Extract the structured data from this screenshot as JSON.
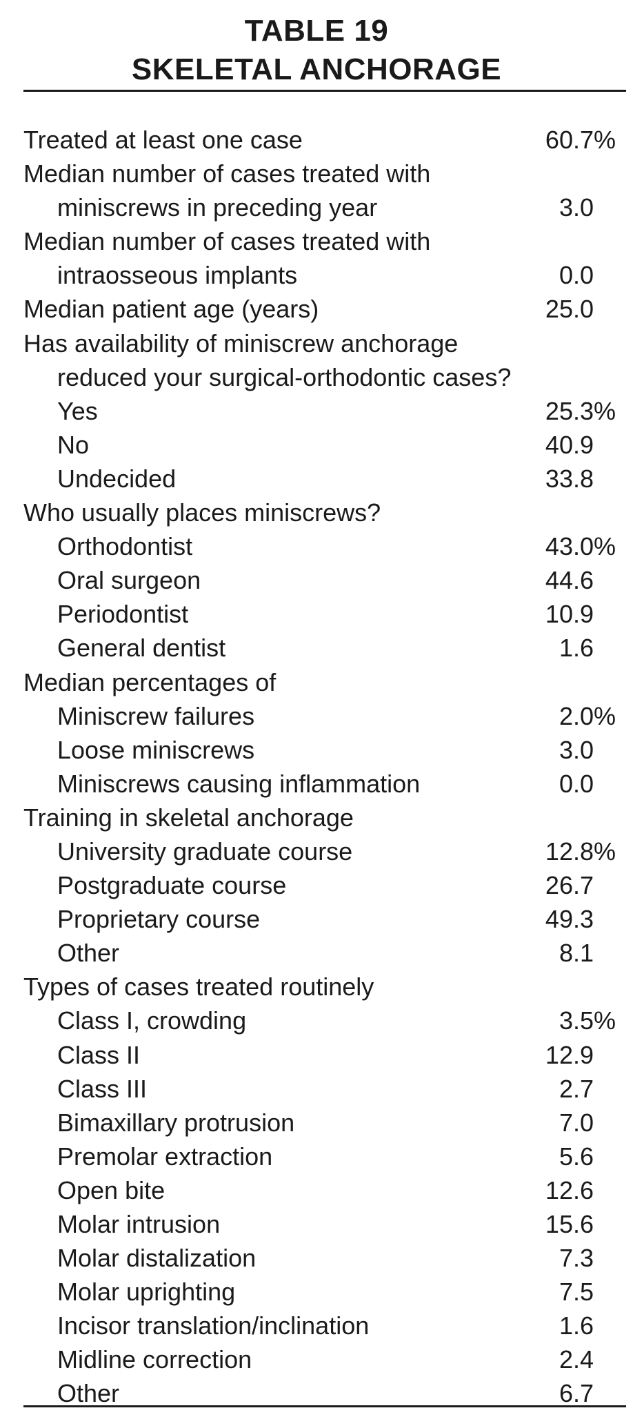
{
  "title": {
    "line1": "TABLE 19",
    "line2": "SKELETAL ANCHORAGE"
  },
  "rows": [
    {
      "label": "Treated at least one case",
      "value": "60.7%",
      "indent": false
    },
    {
      "label": "Median number of cases treated with",
      "value": "",
      "indent": false
    },
    {
      "label": "miniscrews in preceding year",
      "value": "3.0",
      "indent": true
    },
    {
      "label": "Median number of cases treated with",
      "value": "",
      "indent": false
    },
    {
      "label": "intraosseous implants",
      "value": "0.0",
      "indent": true
    },
    {
      "label": "Median patient age (years)",
      "value": "25.0",
      "indent": false
    },
    {
      "label": "Has availability of miniscrew anchorage",
      "value": "",
      "indent": false
    },
    {
      "label": "reduced your surgical-orthodontic cases?",
      "value": "",
      "indent": true
    },
    {
      "label": "Yes",
      "value": "25.3%",
      "indent": true
    },
    {
      "label": "No",
      "value": "40.9",
      "indent": true
    },
    {
      "label": "Undecided",
      "value": "33.8",
      "indent": true
    },
    {
      "label": "Who usually places miniscrews?",
      "value": "",
      "indent": false
    },
    {
      "label": "Orthodontist",
      "value": "43.0%",
      "indent": true
    },
    {
      "label": "Oral surgeon",
      "value": "44.6",
      "indent": true
    },
    {
      "label": "Periodontist",
      "value": "10.9",
      "indent": true
    },
    {
      "label": "General dentist",
      "value": "1.6",
      "indent": true
    },
    {
      "label": "Median percentages of",
      "value": "",
      "indent": false
    },
    {
      "label": "Miniscrew failures",
      "value": "2.0%",
      "indent": true
    },
    {
      "label": "Loose miniscrews",
      "value": "3.0",
      "indent": true
    },
    {
      "label": "Miniscrews causing inflammation",
      "value": "0.0",
      "indent": true
    },
    {
      "label": "Training in skeletal anchorage",
      "value": "",
      "indent": false
    },
    {
      "label": "University graduate course",
      "value": "12.8%",
      "indent": true
    },
    {
      "label": "Postgraduate course",
      "value": "26.7",
      "indent": true
    },
    {
      "label": "Proprietary course",
      "value": "49.3",
      "indent": true
    },
    {
      "label": "Other",
      "value": "8.1",
      "indent": true
    },
    {
      "label": "Types of cases treated routinely",
      "value": "",
      "indent": false
    },
    {
      "label": "Class I, crowding",
      "value": "3.5%",
      "indent": true
    },
    {
      "label": "Class II",
      "value": "12.9",
      "indent": true
    },
    {
      "label": "Class III",
      "value": "2.7",
      "indent": true
    },
    {
      "label": "Bimaxillary protrusion",
      "value": "7.0",
      "indent": true
    },
    {
      "label": "Premolar extraction",
      "value": "5.6",
      "indent": true
    },
    {
      "label": "Open bite",
      "value": "12.6",
      "indent": true
    },
    {
      "label": "Molar intrusion",
      "value": "15.6",
      "indent": true
    },
    {
      "label": "Molar distalization",
      "value": "7.3",
      "indent": true
    },
    {
      "label": "Molar uprighting",
      "value": "7.5",
      "indent": true
    },
    {
      "label": "Incisor translation/inclination",
      "value": "1.6",
      "indent": true
    },
    {
      "label": "Midline correction",
      "value": "2.4",
      "indent": true
    },
    {
      "label": "Other",
      "value": "6.7",
      "indent": true
    }
  ]
}
